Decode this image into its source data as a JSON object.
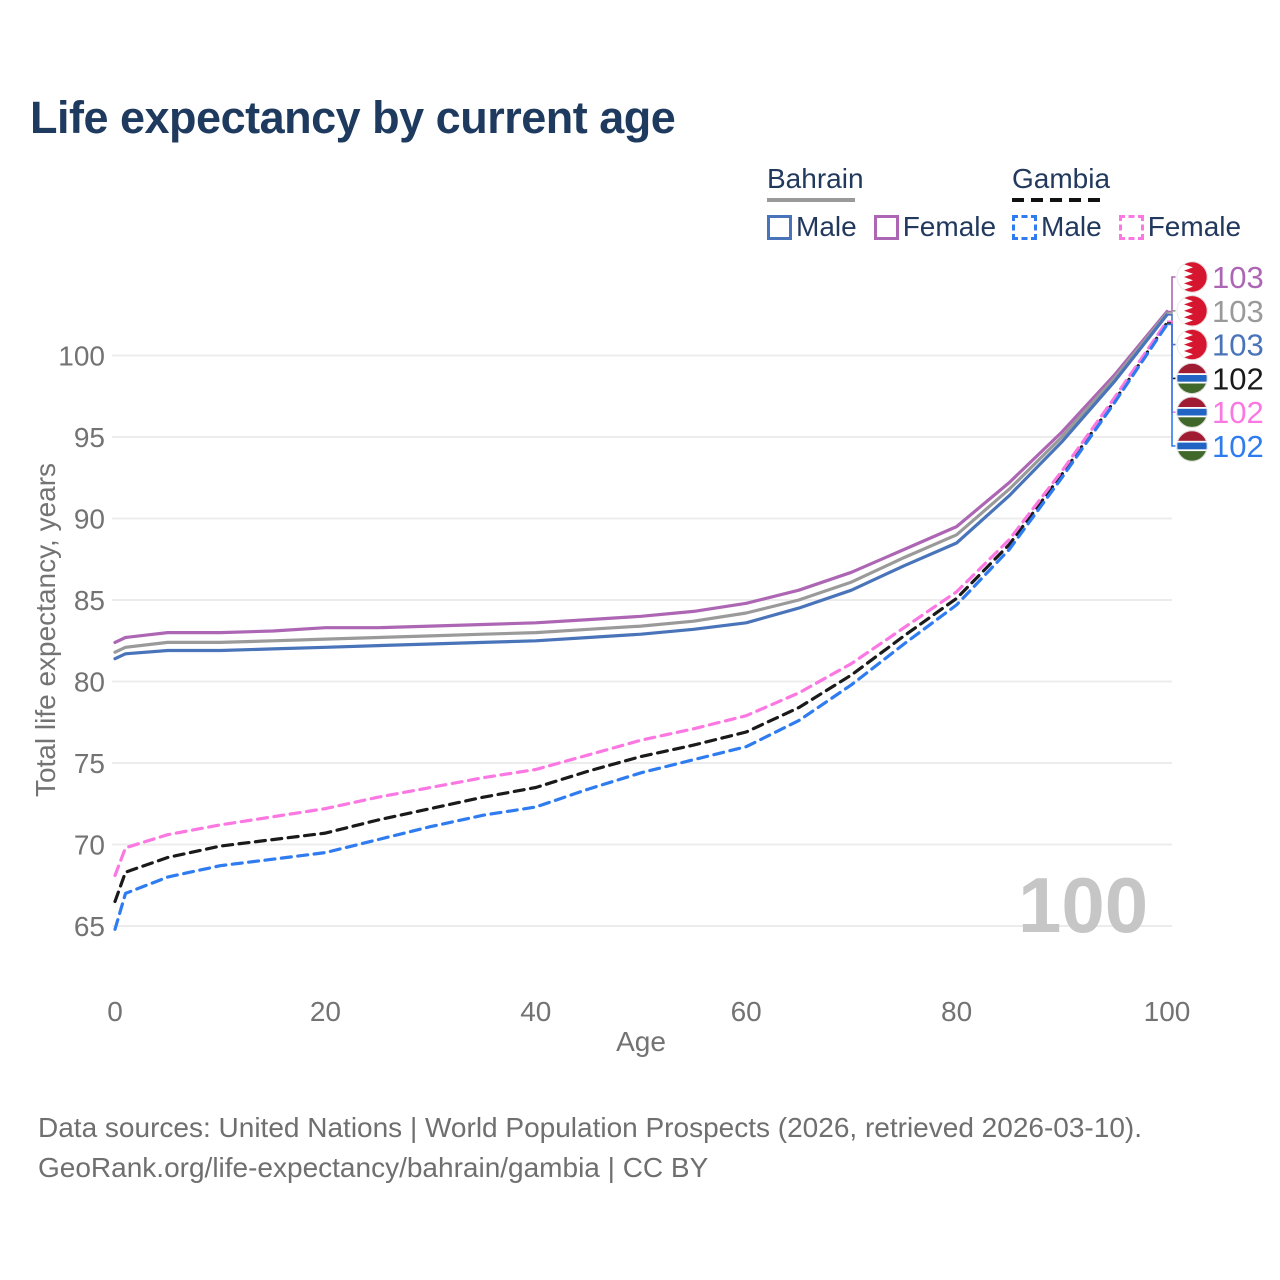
{
  "title": "Life expectancy by current age",
  "watermark": "100",
  "colors": {
    "bahrain_female": "#ad66b4",
    "bahrain_total": "#9a9a9a",
    "bahrain_male": "#4a74ba",
    "gambia_total": "#1a1a1a",
    "gambia_female": "#fb78e3",
    "gambia_male": "#2f7cf0",
    "grid": "#ececec",
    "axis_text": "#737373",
    "title_text": "#1e3a5e",
    "legend_text": "#22395e",
    "watermark_text": "#c6c6c6",
    "footer_text": "#6f6f6f",
    "flag_bahrain_red": "#d6152e",
    "flag_white": "#ffffff",
    "flag_gambia_red": "#a01c33",
    "flag_gambia_blue": "#2264c4",
    "flag_gambia_green": "#41682b"
  },
  "legend": {
    "groups": [
      {
        "label": "Bahrain",
        "line_style": "solid",
        "underline_color": "#9a9a9a",
        "items": [
          {
            "label": "Male",
            "series": "bahrain_male"
          },
          {
            "label": "Female",
            "series": "bahrain_female"
          }
        ]
      },
      {
        "label": "Gambia",
        "line_style": "dashed",
        "underline_color": "#1a1a1a",
        "items": [
          {
            "label": "Male",
            "series": "gambia_male"
          },
          {
            "label": "Female",
            "series": "gambia_female"
          }
        ]
      }
    ]
  },
  "y_axis": {
    "label": "Total life expectancy, years"
  },
  "x_axis": {
    "label": "Age"
  },
  "footer": {
    "line1": "Data sources: United Nations | World Population Prospects (2026, retrieved 2026-03-10).",
    "line2": "GeoRank.org/life-expectancy/bahrain/gambia | CC BY"
  },
  "end_labels": [
    {
      "series": "bahrain_female",
      "flag": "bahrain",
      "value": "103"
    },
    {
      "series": "bahrain_total",
      "flag": "bahrain",
      "value": "103"
    },
    {
      "series": "bahrain_male",
      "flag": "bahrain",
      "value": "103"
    },
    {
      "series": "gambia_total",
      "flag": "gambia",
      "value": "102"
    },
    {
      "series": "gambia_female",
      "flag": "gambia",
      "value": "102"
    },
    {
      "series": "gambia_male",
      "flag": "gambia",
      "value": "102"
    }
  ],
  "chart_data": {
    "type": "line",
    "title": "Life expectancy by current age",
    "xlabel": "Age",
    "ylabel": "Total life expectancy, years",
    "xlim": [
      0,
      100
    ],
    "ylim": [
      63,
      104
    ],
    "x_ticks": [
      0,
      20,
      40,
      60,
      80,
      100
    ],
    "y_ticks": [
      65,
      70,
      75,
      80,
      85,
      90,
      95,
      100
    ],
    "grid": "horizontal",
    "legend_position": "top-right",
    "x": [
      0,
      1,
      5,
      10,
      15,
      20,
      25,
      30,
      35,
      40,
      45,
      50,
      55,
      60,
      65,
      70,
      75,
      80,
      85,
      90,
      95,
      100
    ],
    "series": [
      {
        "name": "Bahrain Female",
        "key": "bahrain_female",
        "country": "Bahrain",
        "sex": "Female",
        "dashed": false,
        "color": "#ad66b4",
        "end_label": "103",
        "values": [
          82.4,
          82.7,
          83.0,
          83.0,
          83.1,
          83.3,
          83.3,
          83.4,
          83.5,
          83.6,
          83.8,
          84.0,
          84.3,
          84.8,
          85.6,
          86.7,
          88.1,
          89.5,
          92.2,
          95.3,
          98.8,
          102.7
        ]
      },
      {
        "name": "Bahrain Both sexes",
        "key": "bahrain_total",
        "country": "Bahrain",
        "sex": "Both",
        "dashed": false,
        "color": "#9a9a9a",
        "end_label": "103",
        "values": [
          81.8,
          82.1,
          82.4,
          82.4,
          82.5,
          82.6,
          82.7,
          82.8,
          82.9,
          83.0,
          83.2,
          83.4,
          83.7,
          84.2,
          85.0,
          86.1,
          87.6,
          89.0,
          91.8,
          95.0,
          98.6,
          102.6
        ]
      },
      {
        "name": "Bahrain Male",
        "key": "bahrain_male",
        "country": "Bahrain",
        "sex": "Male",
        "dashed": false,
        "color": "#4a74ba",
        "end_label": "103",
        "values": [
          81.4,
          81.7,
          81.9,
          81.9,
          82.0,
          82.1,
          82.2,
          82.3,
          82.4,
          82.5,
          82.7,
          82.9,
          83.2,
          83.6,
          84.5,
          85.6,
          87.1,
          88.5,
          91.4,
          94.7,
          98.4,
          102.5
        ]
      },
      {
        "name": "Gambia Both sexes",
        "key": "gambia_total",
        "country": "Gambia",
        "sex": "Both",
        "dashed": true,
        "color": "#1a1a1a",
        "end_label": "102",
        "values": [
          66.5,
          68.3,
          69.2,
          69.9,
          70.3,
          70.7,
          71.5,
          72.2,
          72.9,
          73.5,
          74.5,
          75.4,
          76.1,
          76.9,
          78.4,
          80.4,
          82.8,
          85.1,
          88.4,
          92.7,
          97.2,
          102.0
        ]
      },
      {
        "name": "Gambia Female",
        "key": "gambia_female",
        "country": "Gambia",
        "sex": "Female",
        "dashed": true,
        "color": "#fb78e3",
        "end_label": "102",
        "values": [
          68.1,
          69.8,
          70.6,
          71.2,
          71.7,
          72.2,
          72.9,
          73.5,
          74.1,
          74.6,
          75.5,
          76.4,
          77.1,
          77.9,
          79.3,
          81.1,
          83.3,
          85.5,
          88.7,
          92.9,
          97.4,
          102.1
        ]
      },
      {
        "name": "Gambia Male",
        "key": "gambia_male",
        "country": "Gambia",
        "sex": "Male",
        "dashed": true,
        "color": "#2f7cf0",
        "end_label": "102",
        "values": [
          64.8,
          67.0,
          68.0,
          68.7,
          69.1,
          69.5,
          70.3,
          71.1,
          71.8,
          72.3,
          73.4,
          74.4,
          75.2,
          76.0,
          77.6,
          79.8,
          82.3,
          84.7,
          88.1,
          92.5,
          97.1,
          101.9
        ]
      }
    ]
  }
}
